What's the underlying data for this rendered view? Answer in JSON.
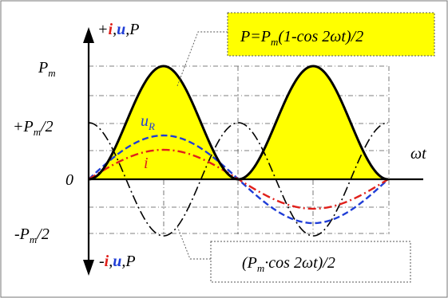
{
  "colors": {
    "power": "#000000",
    "power_fill": "#ffff00",
    "voltage": "#1f3dd6",
    "current": "#e0201b",
    "grid": "#444444",
    "frame": "#666666"
  },
  "labels": {
    "axis_top_sign": "+",
    "axis_top_i": "i",
    "axis_top_sep1": ",",
    "axis_top_u": "u",
    "axis_top_sep2": ",",
    "axis_top_P": "P",
    "axis_bottom_sign": "-",
    "axis_bottom_i": "i",
    "axis_bottom_sep1": ",",
    "axis_bottom_u": "u",
    "axis_bottom_sep2": ",",
    "axis_bottom_P": "P",
    "x_axis": "ωt",
    "pm_base": "P",
    "pm_sub": "m",
    "half_pos_prefix": "+P",
    "half_pos_sub": "m",
    "half_pos_suffix": "/2",
    "zero": "0",
    "half_neg_prefix": "-P",
    "half_neg_sub": "m",
    "half_neg_suffix": "/2",
    "uR_base": "u",
    "uR_sub": "R",
    "i_curve": "i"
  },
  "formulas": {
    "power": {
      "p1": "P=P",
      "sub": "m",
      "p2": "(1-cos 2ωt)/2"
    },
    "cos_term": {
      "p1": "(P",
      "sub": "m",
      "p2": "·cos 2ωt)/2"
    }
  }
}
